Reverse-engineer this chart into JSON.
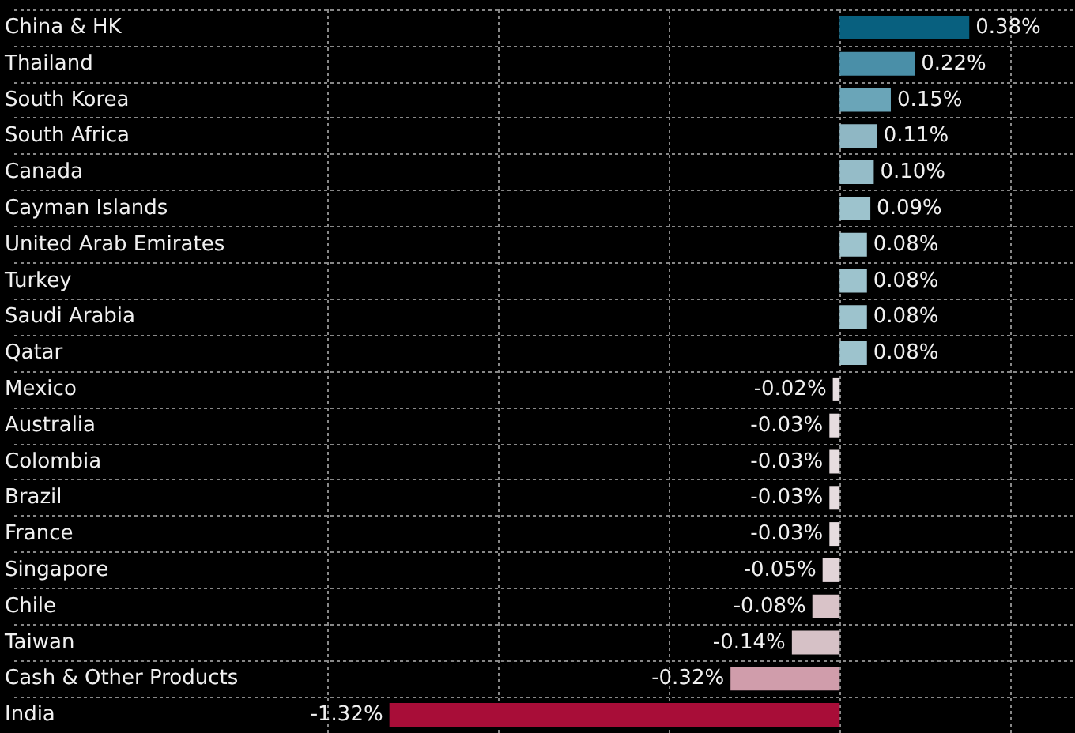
{
  "chart_data": {
    "type": "bar",
    "orientation": "horizontal",
    "categories": [
      "China & HK",
      "Thailand",
      "South Korea",
      "South Africa",
      "Canada",
      "Cayman Islands",
      "United Arab Emirates",
      "Turkey",
      "Saudi Arabia",
      "Qatar",
      "Mexico",
      "Australia",
      "Colombia",
      "Brazil",
      "France",
      "Singapore",
      "Chile",
      "Taiwan",
      "Cash & Other Products",
      "India"
    ],
    "values": [
      0.38,
      0.22,
      0.15,
      0.11,
      0.1,
      0.09,
      0.08,
      0.08,
      0.08,
      0.08,
      -0.02,
      -0.03,
      -0.03,
      -0.03,
      -0.03,
      -0.05,
      -0.08,
      -0.14,
      -0.32,
      -1.32
    ],
    "value_labels": [
      "0.38%",
      "0.22%",
      "0.15%",
      "0.11%",
      "0.10%",
      "0.09%",
      "0.08%",
      "0.08%",
      "0.08%",
      "0.08%",
      "-0.02%",
      "-0.03%",
      "-0.03%",
      "-0.03%",
      "-0.03%",
      "-0.05%",
      "-0.08%",
      "-0.14%",
      "-0.32%",
      "-1.32%"
    ],
    "colors": [
      "#08607f",
      "#4a8fa8",
      "#6aa5b8",
      "#8fb7c4",
      "#95bcc8",
      "#9dc3cd",
      "#9dc3cd",
      "#9dc3cd",
      "#9dc3cd",
      "#9dc3cd",
      "#e8dfe1",
      "#e6dcdf",
      "#e6dcdf",
      "#e6dcdf",
      "#e6dcdf",
      "#e2d4d8",
      "#d9c3c8",
      "#d6c1c6",
      "#d09dab",
      "#a80d38"
    ],
    "xlim": [
      -2.42,
      0.69
    ],
    "xticks": [
      {
        "value": -1.5,
        "label": null
      },
      {
        "value": -1,
        "label": null
      },
      {
        "value": -0.5,
        "label": null
      },
      {
        "value": 0,
        "label": null
      },
      {
        "value": 0.5,
        "label": null
      }
    ],
    "grid": true,
    "tick_labels": "y"
  }
}
